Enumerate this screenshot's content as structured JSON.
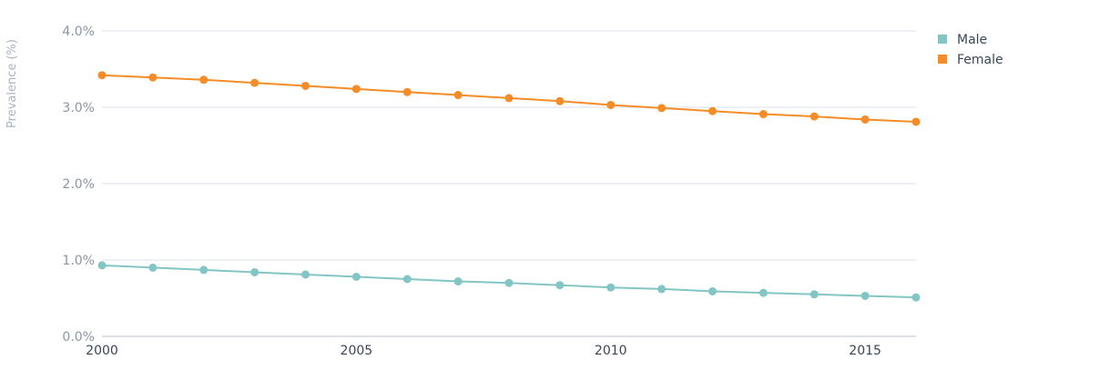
{
  "chart_data": {
    "type": "line",
    "ylabel": "Prevalence (%)",
    "xlim": [
      2000,
      2016
    ],
    "ylim": [
      0,
      4
    ],
    "x_ticks": [
      2000,
      2005,
      2010,
      2015
    ],
    "y_ticks": [
      "0.0%",
      "1.0%",
      "2.0%",
      "3.0%",
      "4.0%"
    ],
    "grid": true,
    "legend_position": "top-right",
    "x": [
      2000,
      2001,
      2002,
      2003,
      2004,
      2005,
      2006,
      2007,
      2008,
      2009,
      2010,
      2011,
      2012,
      2013,
      2014,
      2015,
      2016
    ],
    "series": [
      {
        "name": "Male",
        "color": "#83c5c5",
        "values": [
          0.93,
          0.9,
          0.87,
          0.84,
          0.81,
          0.78,
          0.75,
          0.72,
          0.7,
          0.67,
          0.64,
          0.62,
          0.59,
          0.57,
          0.55,
          0.53,
          0.51
        ]
      },
      {
        "name": "Female",
        "color": "#f58c27",
        "values": [
          3.42,
          3.39,
          3.36,
          3.32,
          3.28,
          3.24,
          3.2,
          3.16,
          3.12,
          3.08,
          3.03,
          2.99,
          2.95,
          2.91,
          2.88,
          2.84,
          2.81
        ]
      }
    ]
  }
}
